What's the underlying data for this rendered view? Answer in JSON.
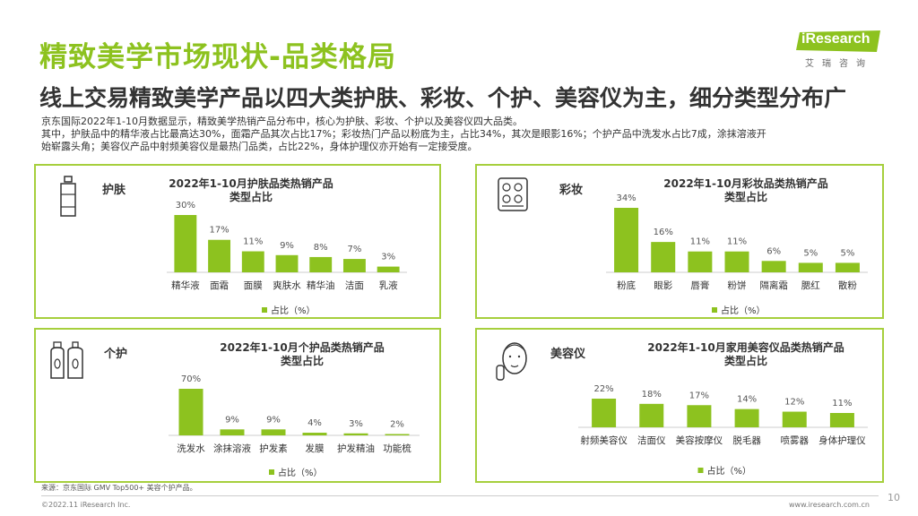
{
  "header": {
    "title": "精致美学市场现状-品类格局",
    "subtitle": "线上交易精致美学产品以四大类护肤、彩妆、个护、美容仪为主，细分类型分布广",
    "desc_lines": [
      "京东国际2022年1-10月数据显示，精致美学热销产品分布中，核心为护肤、彩妆、个护以及美容仪四大品类。",
      "其中，护肤品中的精华液占比最高达30%，面霜产品其次占比17%；彩妆热门产品以粉底为主，占比34%，其次是眼影16%；个护产品中洗发水占比7成，涂抹溶液开",
      "始崭露头角；美容仪产品中射频美容仪是最热门品类，占比22%，身体护理仪亦开始有一定接受度。"
    ]
  },
  "logo": {
    "text": "iResearch",
    "sub": "艾瑞咨询"
  },
  "colors": {
    "accent": "#8dc21f",
    "bar": "#8dc21f",
    "border": "#a6cf3d"
  },
  "panels": [
    {
      "label": "护肤",
      "icon": "skincare-bottle-icon"
    },
    {
      "label": "彩妆",
      "icon": "makeup-palette-icon"
    },
    {
      "label": "个护",
      "icon": "shampoo-bottles-icon"
    },
    {
      "label": "美容仪",
      "icon": "face-device-icon"
    }
  ],
  "chart_data": [
    {
      "type": "bar",
      "title": "2022年1-10月护肤品类热销产品类型占比",
      "title_lines": [
        "2022年1-10月护肤品类热销产品",
        "类型占比"
      ],
      "categories": [
        "精华液",
        "面霜",
        "面膜",
        "爽肤水",
        "精华油",
        "洁面",
        "乳液"
      ],
      "series": [
        {
          "name": "占比（%）",
          "values": [
            30,
            17,
            11,
            9,
            8,
            7,
            3
          ],
          "labels": [
            "30%",
            "17%",
            "11%",
            "9%",
            "8%",
            "7%",
            "3%"
          ]
        }
      ],
      "legend": "bottom"
    },
    {
      "type": "bar",
      "title": "2022年1-10月彩妆品类热销产品类型占比",
      "title_lines": [
        "2022年1-10月彩妆品类热销产品",
        "类型占比"
      ],
      "categories": [
        "粉底",
        "眼影",
        "唇膏",
        "粉饼",
        "隔离霜",
        "腮红",
        "散粉"
      ],
      "series": [
        {
          "name": "占比（%）",
          "values": [
            34,
            16,
            11,
            11,
            6,
            5,
            5
          ],
          "labels": [
            "34%",
            "16%",
            "11%",
            "11%",
            "6%",
            "5%",
            "5%"
          ]
        }
      ],
      "legend": "bottom"
    },
    {
      "type": "bar",
      "title": "2022年1-10月个护品类热销产品类型占比",
      "title_lines": [
        "2022年1-10月个护品类热销产品",
        "类型占比"
      ],
      "categories": [
        "洗发水",
        "涂抹溶液",
        "护发素",
        "发膜",
        "护发精油",
        "功能梳"
      ],
      "series": [
        {
          "name": "占比（%）",
          "values": [
            70,
            9,
            9,
            4,
            3,
            2
          ],
          "labels": [
            "70%",
            "9%",
            "9%",
            "4%",
            "3%",
            "2%"
          ]
        }
      ],
      "legend": "bottom"
    },
    {
      "type": "bar",
      "title": "2022年1-10月家用美容仪品类热销产品类型占比",
      "title_lines": [
        "2022年1-10月家用美容仪品类热销产品",
        "类型占比"
      ],
      "categories": [
        "射频美容仪",
        "洁面仪",
        "美容按摩仪",
        "脱毛器",
        "喷雾器",
        "身体护理仪"
      ],
      "series": [
        {
          "name": "占比（%）",
          "values": [
            22,
            18,
            17,
            14,
            12,
            11
          ],
          "labels": [
            "22%",
            "18%",
            "17%",
            "14%",
            "12%",
            "11%"
          ]
        }
      ],
      "legend": "bottom"
    }
  ],
  "footer": {
    "source": "来源：京东国际 GMV Top500+ 美容个护产品。",
    "copyright": "©2022.11 iResearch Inc.",
    "site": "www.iresearch.com.cn",
    "page": "10"
  }
}
